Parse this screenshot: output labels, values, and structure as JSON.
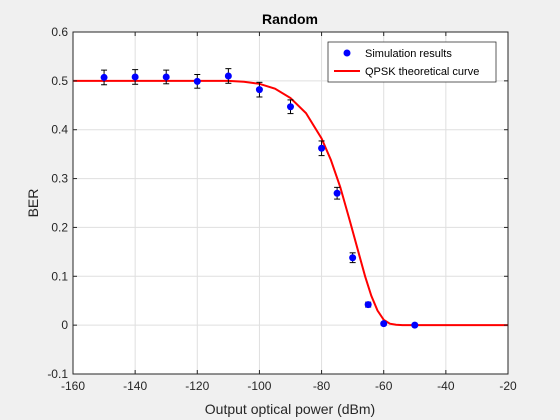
{
  "chart_data": {
    "type": "scatter",
    "title": "Random",
    "xlabel": "Output optical power (dBm)",
    "ylabel": "BER",
    "xlim": [
      -160,
      -20
    ],
    "ylim": [
      -0.1,
      0.6
    ],
    "xticks": [
      -160,
      -140,
      -120,
      -100,
      -80,
      -60,
      -40,
      -20
    ],
    "yticks": [
      -0.1,
      0,
      0.1,
      0.2,
      0.3,
      0.4,
      0.5,
      0.6
    ],
    "xtick_labels": [
      "-160",
      "-140",
      "-120",
      "-100",
      "-80",
      "-60",
      "-40",
      "-20"
    ],
    "ytick_labels": [
      "-0.1",
      "0",
      "0.1",
      "0.2",
      "0.3",
      "0.4",
      "0.5",
      "0.6"
    ],
    "grid": true,
    "legend_position": "top-right",
    "series": [
      {
        "name": "Simulation results",
        "kind": "scatter-errorbar",
        "color": "#0000ff",
        "x": [
          -150,
          -140,
          -130,
          -120,
          -110,
          -100,
          -90,
          -80,
          -75,
          -70,
          -65,
          -60,
          -50
        ],
        "y": [
          0.507,
          0.508,
          0.508,
          0.499,
          0.51,
          0.482,
          0.447,
          0.362,
          0.27,
          0.138,
          0.042,
          0.003,
          0.0
        ],
        "err": [
          0.015,
          0.015,
          0.014,
          0.014,
          0.015,
          0.015,
          0.014,
          0.015,
          0.012,
          0.01,
          0.005,
          0.003,
          0.002
        ]
      },
      {
        "name": "QPSK theoretical curve",
        "kind": "line",
        "color": "#ff0000",
        "x": [
          -160,
          -150,
          -140,
          -130,
          -120,
          -110,
          -105,
          -100,
          -95,
          -90,
          -85,
          -80,
          -77,
          -74,
          -71,
          -68,
          -66,
          -64,
          -62,
          -60,
          -58,
          -56,
          -54,
          -50,
          -40,
          -30,
          -20
        ],
        "y": [
          0.5,
          0.5,
          0.5,
          0.5,
          0.5,
          0.5,
          0.498,
          0.494,
          0.484,
          0.465,
          0.434,
          0.382,
          0.338,
          0.283,
          0.216,
          0.146,
          0.1,
          0.06,
          0.03,
          0.011,
          0.003,
          0.001,
          0.0,
          0.0,
          0.0,
          0.0,
          0.0
        ]
      }
    ]
  }
}
